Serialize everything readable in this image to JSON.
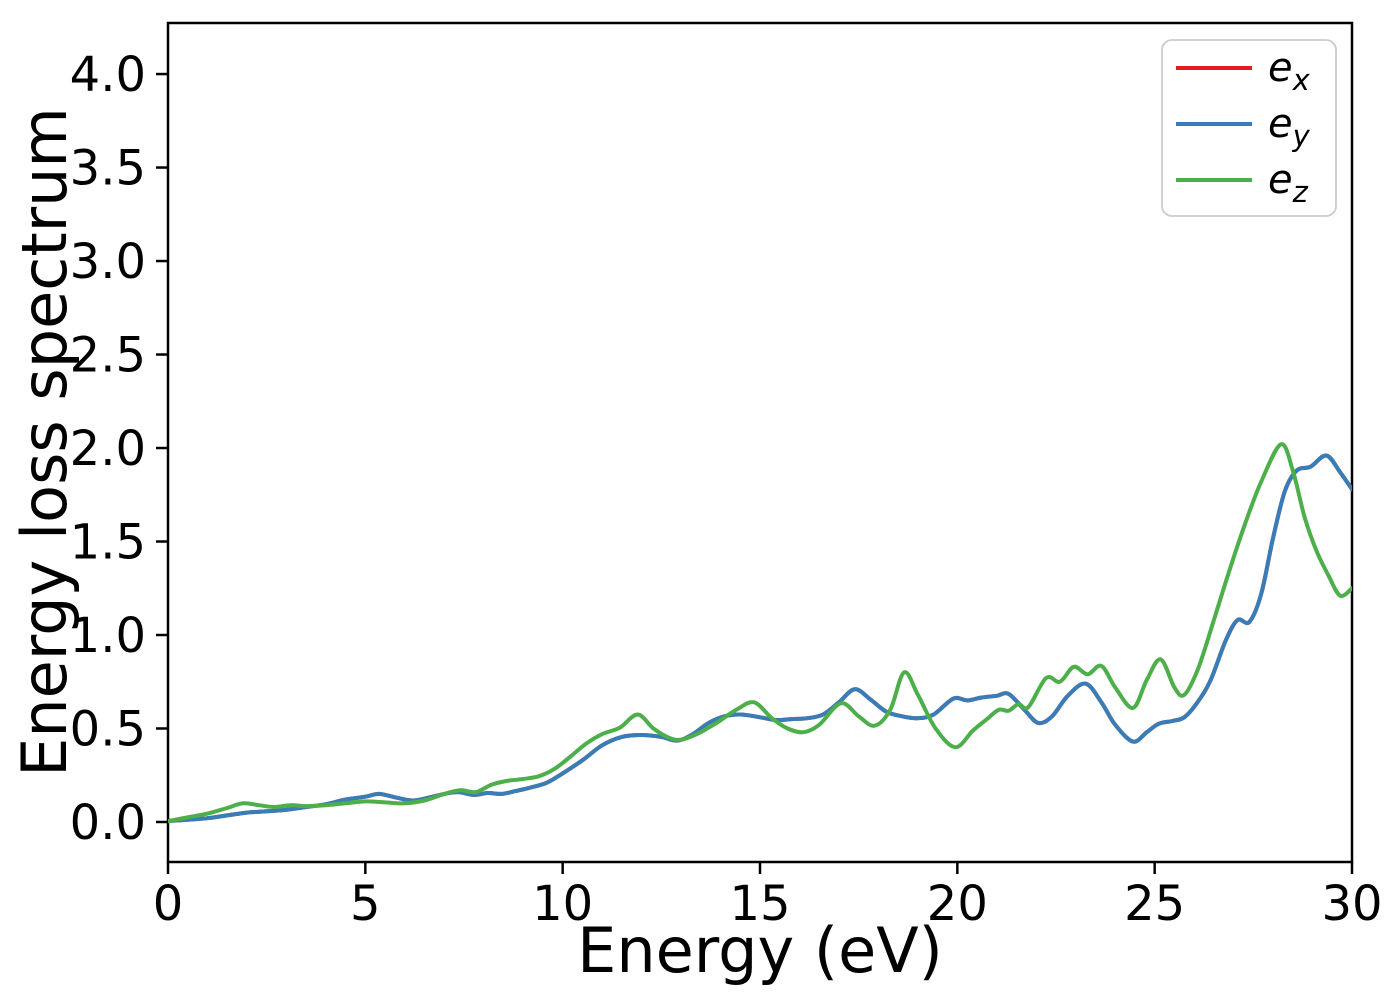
{
  "chart_data": {
    "type": "line",
    "title": "",
    "xlabel": "Energy (eV)",
    "ylabel": "Energy loss spectrum",
    "xlim": [
      0,
      30
    ],
    "ylim": [
      -0.214,
      4.273
    ],
    "xticks": [
      "0",
      "5",
      "10",
      "15",
      "20",
      "25",
      "30"
    ],
    "xtick_values": [
      0,
      5,
      10,
      15,
      20,
      25,
      30
    ],
    "yticks": [
      "0.0",
      "0.5",
      "1.0",
      "1.5",
      "2.0",
      "2.5",
      "3.0",
      "3.5",
      "4.0"
    ],
    "ytick_values": [
      0.0,
      0.5,
      1.0,
      1.5,
      2.0,
      2.5,
      3.0,
      3.5,
      4.0
    ],
    "grid": false,
    "legend_position": "upper right",
    "axis_color": "#000000",
    "legend_border_color": "#cccccc",
    "series": [
      {
        "id": "ex",
        "legend_base": "e",
        "legend_sub": "x",
        "color": "#e41a1c",
        "note": "identical to ey, hidden beneath it",
        "points": [
          [
            0,
            0.005
          ],
          [
            0.5,
            0.012
          ],
          [
            1,
            0.02
          ],
          [
            1.5,
            0.035
          ],
          [
            2,
            0.05
          ],
          [
            2.5,
            0.057
          ],
          [
            3,
            0.065
          ],
          [
            3.5,
            0.08
          ],
          [
            4,
            0.095
          ],
          [
            4.5,
            0.12
          ],
          [
            5,
            0.135
          ],
          [
            5.35,
            0.15
          ],
          [
            5.8,
            0.13
          ],
          [
            6.2,
            0.115
          ],
          [
            6.6,
            0.13
          ],
          [
            7,
            0.15
          ],
          [
            7.35,
            0.16
          ],
          [
            7.75,
            0.145
          ],
          [
            8.1,
            0.155
          ],
          [
            8.45,
            0.15
          ],
          [
            8.8,
            0.165
          ],
          [
            9.2,
            0.185
          ],
          [
            9.6,
            0.21
          ],
          [
            10,
            0.26
          ],
          [
            10.5,
            0.33
          ],
          [
            11,
            0.41
          ],
          [
            11.5,
            0.455
          ],
          [
            12,
            0.465
          ],
          [
            12.5,
            0.455
          ],
          [
            12.9,
            0.435
          ],
          [
            13.3,
            0.47
          ],
          [
            13.7,
            0.53
          ],
          [
            14.1,
            0.565
          ],
          [
            14.5,
            0.575
          ],
          [
            15,
            0.56
          ],
          [
            15.4,
            0.545
          ],
          [
            15.8,
            0.55
          ],
          [
            16.2,
            0.555
          ],
          [
            16.6,
            0.575
          ],
          [
            17,
            0.64
          ],
          [
            17.4,
            0.71
          ],
          [
            17.8,
            0.655
          ],
          [
            18.2,
            0.59
          ],
          [
            18.6,
            0.565
          ],
          [
            19,
            0.555
          ],
          [
            19.4,
            0.575
          ],
          [
            19.9,
            0.66
          ],
          [
            20.25,
            0.65
          ],
          [
            20.6,
            0.665
          ],
          [
            21,
            0.675
          ],
          [
            21.3,
            0.685
          ],
          [
            21.7,
            0.6
          ],
          [
            22.05,
            0.53
          ],
          [
            22.4,
            0.565
          ],
          [
            22.8,
            0.675
          ],
          [
            23.25,
            0.74
          ],
          [
            23.65,
            0.64
          ],
          [
            24,
            0.52
          ],
          [
            24.45,
            0.43
          ],
          [
            24.8,
            0.48
          ],
          [
            25.1,
            0.525
          ],
          [
            25.45,
            0.54
          ],
          [
            25.75,
            0.56
          ],
          [
            26.05,
            0.63
          ],
          [
            26.4,
            0.75
          ],
          [
            26.8,
            0.97
          ],
          [
            27.1,
            1.08
          ],
          [
            27.4,
            1.07
          ],
          [
            27.7,
            1.22
          ],
          [
            28,
            1.52
          ],
          [
            28.3,
            1.77
          ],
          [
            28.6,
            1.88
          ],
          [
            28.95,
            1.9
          ],
          [
            29.35,
            1.96
          ],
          [
            29.7,
            1.87
          ],
          [
            30,
            1.78
          ]
        ]
      },
      {
        "id": "ey",
        "legend_base": "e",
        "legend_sub": "y",
        "color": "#377eb8",
        "points": [
          [
            0,
            0.005
          ],
          [
            0.5,
            0.012
          ],
          [
            1,
            0.02
          ],
          [
            1.5,
            0.035
          ],
          [
            2,
            0.05
          ],
          [
            2.5,
            0.057
          ],
          [
            3,
            0.065
          ],
          [
            3.5,
            0.08
          ],
          [
            4,
            0.095
          ],
          [
            4.5,
            0.12
          ],
          [
            5,
            0.135
          ],
          [
            5.35,
            0.15
          ],
          [
            5.8,
            0.13
          ],
          [
            6.2,
            0.115
          ],
          [
            6.6,
            0.13
          ],
          [
            7,
            0.15
          ],
          [
            7.35,
            0.16
          ],
          [
            7.75,
            0.145
          ],
          [
            8.1,
            0.155
          ],
          [
            8.45,
            0.15
          ],
          [
            8.8,
            0.165
          ],
          [
            9.2,
            0.185
          ],
          [
            9.6,
            0.21
          ],
          [
            10,
            0.26
          ],
          [
            10.5,
            0.33
          ],
          [
            11,
            0.41
          ],
          [
            11.5,
            0.455
          ],
          [
            12,
            0.465
          ],
          [
            12.5,
            0.455
          ],
          [
            12.9,
            0.435
          ],
          [
            13.3,
            0.47
          ],
          [
            13.7,
            0.53
          ],
          [
            14.1,
            0.565
          ],
          [
            14.5,
            0.575
          ],
          [
            15,
            0.56
          ],
          [
            15.4,
            0.545
          ],
          [
            15.8,
            0.55
          ],
          [
            16.2,
            0.555
          ],
          [
            16.6,
            0.575
          ],
          [
            17,
            0.64
          ],
          [
            17.4,
            0.71
          ],
          [
            17.8,
            0.655
          ],
          [
            18.2,
            0.59
          ],
          [
            18.6,
            0.565
          ],
          [
            19,
            0.555
          ],
          [
            19.4,
            0.575
          ],
          [
            19.9,
            0.66
          ],
          [
            20.25,
            0.65
          ],
          [
            20.6,
            0.665
          ],
          [
            21,
            0.675
          ],
          [
            21.3,
            0.685
          ],
          [
            21.7,
            0.6
          ],
          [
            22.05,
            0.53
          ],
          [
            22.4,
            0.565
          ],
          [
            22.8,
            0.675
          ],
          [
            23.25,
            0.74
          ],
          [
            23.65,
            0.64
          ],
          [
            24,
            0.52
          ],
          [
            24.45,
            0.43
          ],
          [
            24.8,
            0.48
          ],
          [
            25.1,
            0.525
          ],
          [
            25.45,
            0.54
          ],
          [
            25.75,
            0.56
          ],
          [
            26.05,
            0.63
          ],
          [
            26.4,
            0.75
          ],
          [
            26.8,
            0.97
          ],
          [
            27.1,
            1.08
          ],
          [
            27.4,
            1.07
          ],
          [
            27.7,
            1.22
          ],
          [
            28,
            1.52
          ],
          [
            28.3,
            1.77
          ],
          [
            28.6,
            1.88
          ],
          [
            28.95,
            1.9
          ],
          [
            29.35,
            1.96
          ],
          [
            29.7,
            1.87
          ],
          [
            30,
            1.78
          ]
        ]
      },
      {
        "id": "ez",
        "legend_base": "e",
        "legend_sub": "z",
        "color": "#4daf4a",
        "points": [
          [
            0,
            0.005
          ],
          [
            0.5,
            0.025
          ],
          [
            1,
            0.045
          ],
          [
            1.5,
            0.075
          ],
          [
            1.9,
            0.1
          ],
          [
            2.3,
            0.09
          ],
          [
            2.7,
            0.08
          ],
          [
            3.1,
            0.09
          ],
          [
            3.5,
            0.085
          ],
          [
            4,
            0.09
          ],
          [
            4.5,
            0.1
          ],
          [
            5,
            0.11
          ],
          [
            5.5,
            0.105
          ],
          [
            6,
            0.1
          ],
          [
            6.5,
            0.115
          ],
          [
            7,
            0.15
          ],
          [
            7.4,
            0.17
          ],
          [
            7.8,
            0.16
          ],
          [
            8.2,
            0.2
          ],
          [
            8.6,
            0.22
          ],
          [
            9,
            0.23
          ],
          [
            9.4,
            0.245
          ],
          [
            9.8,
            0.285
          ],
          [
            10.2,
            0.35
          ],
          [
            10.6,
            0.42
          ],
          [
            11,
            0.47
          ],
          [
            11.45,
            0.505
          ],
          [
            11.9,
            0.575
          ],
          [
            12.3,
            0.5
          ],
          [
            12.7,
            0.45
          ],
          [
            13,
            0.44
          ],
          [
            13.4,
            0.47
          ],
          [
            13.9,
            0.53
          ],
          [
            14.4,
            0.6
          ],
          [
            14.85,
            0.64
          ],
          [
            15.3,
            0.555
          ],
          [
            15.7,
            0.5
          ],
          [
            16.1,
            0.48
          ],
          [
            16.5,
            0.52
          ],
          [
            17.05,
            0.635
          ],
          [
            17.5,
            0.565
          ],
          [
            17.9,
            0.515
          ],
          [
            18.3,
            0.6
          ],
          [
            18.65,
            0.8
          ],
          [
            19,
            0.68
          ],
          [
            19.45,
            0.5
          ],
          [
            19.95,
            0.4
          ],
          [
            20.4,
            0.49
          ],
          [
            20.75,
            0.55
          ],
          [
            21.05,
            0.6
          ],
          [
            21.3,
            0.595
          ],
          [
            21.55,
            0.63
          ],
          [
            21.8,
            0.615
          ],
          [
            22.25,
            0.77
          ],
          [
            22.6,
            0.75
          ],
          [
            22.95,
            0.83
          ],
          [
            23.3,
            0.79
          ],
          [
            23.65,
            0.835
          ],
          [
            24,
            0.72
          ],
          [
            24.45,
            0.61
          ],
          [
            24.8,
            0.76
          ],
          [
            25.15,
            0.87
          ],
          [
            25.5,
            0.72
          ],
          [
            25.75,
            0.68
          ],
          [
            26.1,
            0.82
          ],
          [
            26.5,
            1.08
          ],
          [
            26.9,
            1.35
          ],
          [
            27.3,
            1.6
          ],
          [
            27.7,
            1.82
          ],
          [
            28.2,
            2.02
          ],
          [
            28.5,
            1.88
          ],
          [
            28.8,
            1.63
          ],
          [
            29.1,
            1.45
          ],
          [
            29.4,
            1.32
          ],
          [
            29.7,
            1.21
          ],
          [
            30,
            1.25
          ]
        ]
      }
    ]
  }
}
